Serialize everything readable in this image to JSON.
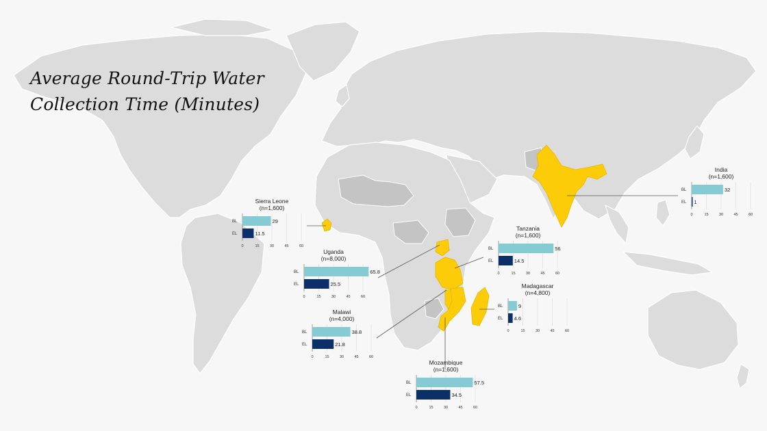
{
  "title": {
    "line1": "Average Round-Trip Water",
    "line2": "Collection Time (Minutes)"
  },
  "colors": {
    "ocean": "#f7f7f7",
    "land": "#dcdcdc",
    "land_dark": "#c4c4c4",
    "highlight": "#fccc08",
    "bl_bar": "#86cbd3",
    "el_bar": "#0b2f66",
    "connector": "#555555"
  },
  "chart_data": [
    {
      "type": "bar",
      "country": "Sierra Leone",
      "n_label": "(n=1,600)",
      "categories": [
        "BL",
        "EL"
      ],
      "values": [
        29,
        11.5
      ],
      "value_labels": [
        "29",
        "11.5"
      ],
      "xlim": [
        0,
        60
      ],
      "ticks": [
        "0",
        "15",
        "30",
        "45",
        "60"
      ]
    },
    {
      "type": "bar",
      "country": "Uganda",
      "n_label": "(n=8,000)",
      "categories": [
        "BL",
        "EL"
      ],
      "values": [
        65.8,
        25.5
      ],
      "value_labels": [
        "65.8",
        "25.5"
      ],
      "xlim": [
        0,
        60
      ],
      "ticks": [
        "0",
        "15",
        "30",
        "45",
        "60"
      ]
    },
    {
      "type": "bar",
      "country": "Malawi",
      "n_label": "(n=4,000)",
      "categories": [
        "BL",
        "EL"
      ],
      "values": [
        38.8,
        21.8
      ],
      "value_labels": [
        "38.8",
        "21.8"
      ],
      "xlim": [
        0,
        60
      ],
      "ticks": [
        "0",
        "15",
        "30",
        "45",
        "60"
      ]
    },
    {
      "type": "bar",
      "country": "Mozambique",
      "n_label": "(n=1,600)",
      "categories": [
        "BL",
        "EL"
      ],
      "values": [
        57.5,
        34.5
      ],
      "value_labels": [
        "57.5",
        "34.5"
      ],
      "xlim": [
        0,
        60
      ],
      "ticks": [
        "0",
        "15",
        "30",
        "45",
        "60"
      ]
    },
    {
      "type": "bar",
      "country": "Tanzania",
      "n_label": "(n=1,600)",
      "categories": [
        "BL",
        "EL"
      ],
      "values": [
        56,
        14.5
      ],
      "value_labels": [
        "56",
        "14.5"
      ],
      "xlim": [
        0,
        60
      ],
      "ticks": [
        "0",
        "15",
        "30",
        "45",
        "60"
      ]
    },
    {
      "type": "bar",
      "country": "Madagascar",
      "n_label": "(n=4,800)",
      "categories": [
        "BL",
        "EL"
      ],
      "values": [
        9,
        4.6
      ],
      "value_labels": [
        "9",
        "4.6"
      ],
      "xlim": [
        0,
        60
      ],
      "ticks": [
        "0",
        "15",
        "30",
        "45",
        "60"
      ]
    },
    {
      "type": "bar",
      "country": "India",
      "n_label": "(n=1,600)",
      "categories": [
        "BL",
        "EL"
      ],
      "values": [
        32,
        1
      ],
      "value_labels": [
        "32",
        "1"
      ],
      "xlim": [
        0,
        60
      ],
      "ticks": [
        "0",
        "15",
        "30",
        "45",
        "60"
      ]
    }
  ]
}
